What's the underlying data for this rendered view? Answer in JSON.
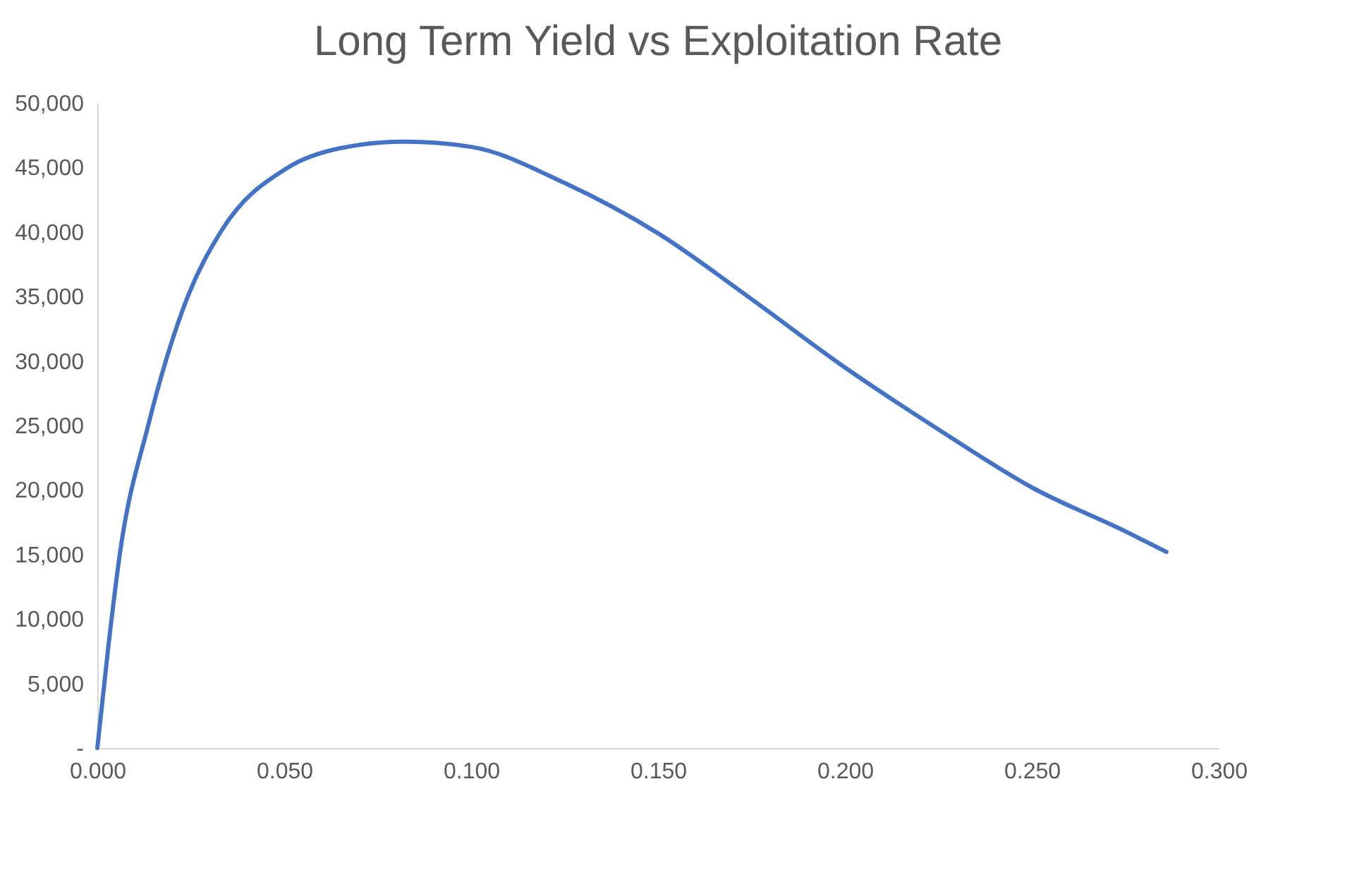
{
  "chart_data": {
    "type": "line",
    "title": "Long Term Yield vs Exploitation Rate",
    "x": [
      0,
      0.003,
      0.006,
      0.0136,
      0.0242,
      0.033,
      0.051,
      0.065,
      0.082,
      0.1,
      0.125,
      0.15,
      0.175,
      0.2,
      0.225,
      0.25,
      0.275,
      0.286
    ],
    "series": [
      {
        "color": "#4472c4",
        "values": [
          0,
          8000,
          15000,
          25000,
          35000,
          40000,
          45000,
          46500,
          47000,
          46600,
          43800,
          39900,
          34800,
          29500,
          24700,
          20200,
          16800,
          15200
        ]
      }
    ],
    "xlim": [
      0,
      0.3
    ],
    "xticks": [
      {
        "value": 0,
        "label": "0.000"
      },
      {
        "value": 0.05,
        "label": "0.050"
      },
      {
        "value": 0.1,
        "label": "0.100"
      },
      {
        "value": 0.15,
        "label": "0.150"
      },
      {
        "value": 0.2,
        "label": "0.200"
      },
      {
        "value": 0.25,
        "label": "0.250"
      },
      {
        "value": 0.3,
        "label": "0.300"
      }
    ],
    "ylim": [
      0,
      50000
    ],
    "yticks": [
      {
        "value": 0,
        "label": "-"
      },
      {
        "value": 5000,
        "label": "5,000"
      },
      {
        "value": 10000,
        "label": "10,000"
      },
      {
        "value": 15000,
        "label": "15,000"
      },
      {
        "value": 20000,
        "label": "20,000"
      },
      {
        "value": 25000,
        "label": "25,000"
      },
      {
        "value": 30000,
        "label": "30,000"
      },
      {
        "value": 35000,
        "label": "35,000"
      },
      {
        "value": 40000,
        "label": "40,000"
      },
      {
        "value": 45000,
        "label": "45,000"
      },
      {
        "value": 50000,
        "label": "50,000"
      }
    ],
    "grid": false,
    "marker": "none",
    "line_style": "solid"
  }
}
